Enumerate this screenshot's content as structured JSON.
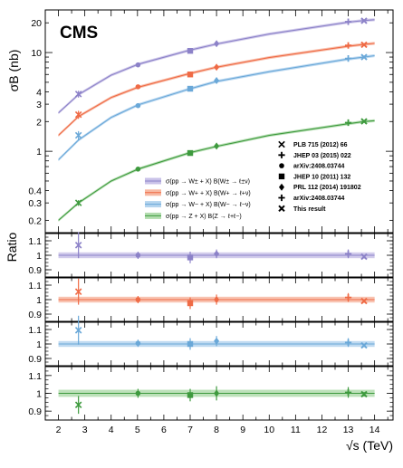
{
  "chart_data": {
    "type": "line",
    "logo": "CMS",
    "xlabel": "√s (TeV)",
    "xlim": [
      1.5,
      14.7
    ],
    "xticks": [
      2,
      3,
      4,
      5,
      6,
      7,
      8,
      9,
      10,
      11,
      12,
      13,
      14
    ],
    "main": {
      "ylabel": "σB (nb)",
      "scale": "log",
      "ylim": [
        0.15,
        27
      ],
      "yticks": [
        {
          "v": 0.2,
          "label": "0.2"
        },
        {
          "v": 0.3,
          "label": "0.3"
        },
        {
          "v": 0.4,
          "label": "0.4"
        },
        {
          "v": 1,
          "label": "1"
        },
        {
          "v": 2,
          "label": "2"
        },
        {
          "v": 3,
          "label": "3"
        },
        {
          "v": 4,
          "label": "4"
        },
        {
          "v": 10,
          "label": "10"
        },
        {
          "v": 20,
          "label": "20"
        }
      ],
      "theory": [
        {
          "name": "σ(pp → W± + X) B(W± → ℓ±ν)",
          "color": "#8c82c8",
          "band": "#c9c2e8",
          "x": [
            2,
            2.76,
            4,
            5.02,
            7,
            8,
            10,
            13,
            13.6,
            14
          ],
          "y": [
            2.45,
            3.75,
            5.9,
            7.6,
            10.6,
            12.2,
            15.4,
            20.3,
            21.1,
            21.5
          ]
        },
        {
          "name": "σ(pp → W+ + X) B(W+ → ℓ+ν)",
          "color": "#ef6a45",
          "band": "#f7b9a3",
          "x": [
            2,
            2.76,
            4,
            5.02,
            7,
            8,
            10,
            13,
            13.6,
            14
          ],
          "y": [
            1.45,
            2.25,
            3.5,
            4.45,
            6.15,
            7.1,
            8.9,
            11.6,
            12.1,
            12.4
          ]
        },
        {
          "name": "σ(pp → W− + X) B(W− → ℓ−ν)",
          "color": "#6aa8d8",
          "band": "#b4d4ee",
          "x": [
            2,
            2.76,
            4,
            5.02,
            7,
            8,
            10,
            13,
            13.6,
            14
          ],
          "y": [
            0.82,
            1.3,
            2.2,
            2.95,
            4.3,
            5.1,
            6.4,
            8.6,
            9.0,
            9.3
          ]
        },
        {
          "name": "σ(pp → Z + X) B(Z → ℓ+ℓ−)",
          "color": "#3e9a3e",
          "band": "#b2dcae",
          "x": [
            2,
            2.76,
            4,
            5.02,
            7,
            8,
            10,
            13,
            13.6,
            14
          ],
          "y": [
            0.2,
            0.3,
            0.5,
            0.66,
            0.97,
            1.12,
            1.45,
            1.9,
            2.0,
            2.04
          ]
        }
      ],
      "measurements": [
        {
          "x": 2.76,
          "values": [
            3.8,
            2.35,
            1.45,
            0.3
          ],
          "errors": [
            0.3,
            0.22,
            0.15,
            0.02
          ],
          "marker": "x4"
        },
        {
          "x": 5.02,
          "values": [
            7.5,
            4.5,
            2.9,
            0.66
          ],
          "errors": [
            0.15,
            0.1,
            0.06,
            0.015
          ],
          "marker": "circle"
        },
        {
          "x": 7,
          "values": [
            10.4,
            6.0,
            4.3,
            0.96
          ],
          "errors": [
            0.4,
            0.25,
            0.18,
            0.04
          ],
          "marker": "square"
        },
        {
          "x": 8,
          "values": [
            12.3,
            7.1,
            5.2,
            1.13
          ],
          "errors": [
            0.5,
            0.3,
            0.2,
            0.07
          ],
          "marker": "diamond"
        },
        {
          "x": 13,
          "values": [
            20.5,
            11.8,
            8.7,
            1.95
          ],
          "errors": [
            0.35,
            0.2,
            0.15,
            0.04
          ],
          "marker": "plus"
        },
        {
          "x": 13.6,
          "values": [
            21.0,
            12.0,
            9.0,
            2.01
          ],
          "errors": [
            0.15,
            0.1,
            0.08,
            0.02
          ],
          "marker": "cross"
        }
      ]
    },
    "ratio": {
      "ylabel": "Ratio",
      "ylim": [
        0.85,
        1.15
      ],
      "yticks": [
        {
          "v": 0.9,
          "label": "0.9"
        },
        {
          "v": 1.0,
          "label": "1"
        },
        {
          "v": 1.1,
          "label": "1.1"
        }
      ],
      "panels": [
        {
          "points": [
            {
              "x": 2.76,
              "y": 1.07,
              "err": 0.09,
              "marker": "x4"
            },
            {
              "x": 5.02,
              "y": 1.0,
              "err": 0.025,
              "marker": "circle"
            },
            {
              "x": 7,
              "y": 0.985,
              "err": 0.04,
              "marker": "square"
            },
            {
              "x": 8,
              "y": 1.01,
              "err": 0.03,
              "marker": "diamond"
            },
            {
              "x": 13,
              "y": 1.01,
              "err": 0.03,
              "marker": "plus"
            },
            {
              "x": 13.6,
              "y": 0.99,
              "err": 0.012,
              "marker": "cross"
            }
          ]
        },
        {
          "points": [
            {
              "x": 2.76,
              "y": 1.055,
              "err": 0.09,
              "marker": "x4"
            },
            {
              "x": 5.02,
              "y": 1.0,
              "err": 0.025,
              "marker": "circle"
            },
            {
              "x": 7,
              "y": 0.975,
              "err": 0.04,
              "marker": "square"
            },
            {
              "x": 8,
              "y": 1.0,
              "err": 0.035,
              "marker": "diamond"
            },
            {
              "x": 13,
              "y": 1.015,
              "err": 0.03,
              "marker": "plus"
            },
            {
              "x": 13.6,
              "y": 0.99,
              "err": 0.012,
              "marker": "cross"
            }
          ]
        },
        {
          "points": [
            {
              "x": 2.76,
              "y": 1.095,
              "err": 0.1,
              "marker": "x4"
            },
            {
              "x": 5.02,
              "y": 1.005,
              "err": 0.025,
              "marker": "circle"
            },
            {
              "x": 7,
              "y": 1.0,
              "err": 0.04,
              "marker": "square"
            },
            {
              "x": 8,
              "y": 1.02,
              "err": 0.035,
              "marker": "diamond"
            },
            {
              "x": 13,
              "y": 1.01,
              "err": 0.03,
              "marker": "plus"
            },
            {
              "x": 13.6,
              "y": 0.99,
              "err": 0.012,
              "marker": "cross"
            }
          ]
        },
        {
          "points": [
            {
              "x": 2.76,
              "y": 0.935,
              "err": 0.05,
              "marker": "x4"
            },
            {
              "x": 5.02,
              "y": 1.0,
              "err": 0.025,
              "marker": "circle"
            },
            {
              "x": 7,
              "y": 0.99,
              "err": 0.035,
              "marker": "square"
            },
            {
              "x": 8,
              "y": 1.0,
              "err": 0.04,
              "marker": "diamond"
            },
            {
              "x": 13,
              "y": 1.005,
              "err": 0.03,
              "marker": "plus"
            },
            {
              "x": 13.6,
              "y": 0.995,
              "err": 0.012,
              "marker": "cross"
            }
          ]
        }
      ]
    },
    "marker_legend": [
      {
        "marker": "x4",
        "label": "PLB 715 (2012) 66"
      },
      {
        "marker": "plus",
        "label": "JHEP 03 (2015) 022"
      },
      {
        "marker": "circle",
        "label": "arXiv:2408.03744"
      },
      {
        "marker": "square",
        "label": "JHEP 10 (2011) 132"
      },
      {
        "marker": "diamond",
        "label": "PRL 112 (2014) 191802"
      },
      {
        "marker": "plus",
        "label": "arXiv:2408.03744"
      },
      {
        "marker": "cross",
        "label": "This result"
      }
    ],
    "band_legend": [
      {
        "series": 0,
        "label": "σ(pp → W± + X) B(W± → ℓ±ν)"
      },
      {
        "series": 1,
        "label": "σ(pp → W+ + X) B(W+ → ℓ+ν)"
      },
      {
        "series": 2,
        "label": "σ(pp → W− + X) B(W− → ℓ−ν)"
      },
      {
        "series": 3,
        "label": "σ(pp → Z + X) B(Z → ℓ+ℓ−)"
      }
    ]
  }
}
